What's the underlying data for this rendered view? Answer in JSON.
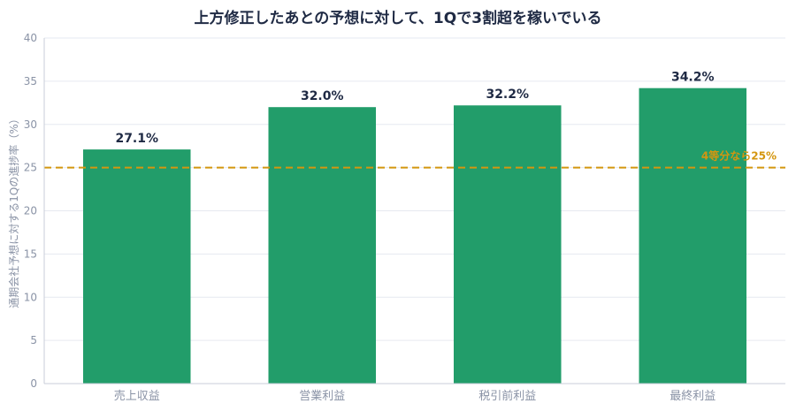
{
  "chart_data": {
    "type": "bar",
    "title": "上方修正したあとの予想に対して、1Qで3割超を稼いでいる",
    "ylabel": "通期会社予想に対する1Qの進捗率（%）",
    "xlabel": "",
    "categories": [
      "売上収益",
      "営業利益",
      "税引前利益",
      "最終利益"
    ],
    "values": [
      27.1,
      32.0,
      32.2,
      34.2
    ],
    "value_labels": [
      "27.1%",
      "32.0%",
      "32.2%",
      "34.2%"
    ],
    "ylim": [
      0,
      40
    ],
    "yticks": [
      0,
      5,
      10,
      15,
      20,
      25,
      30,
      35,
      40
    ],
    "grid": true,
    "bar_color": "#229d6a",
    "reference_line": {
      "value": 25,
      "label": "4等分なら25%",
      "color": "#d4960f"
    }
  }
}
